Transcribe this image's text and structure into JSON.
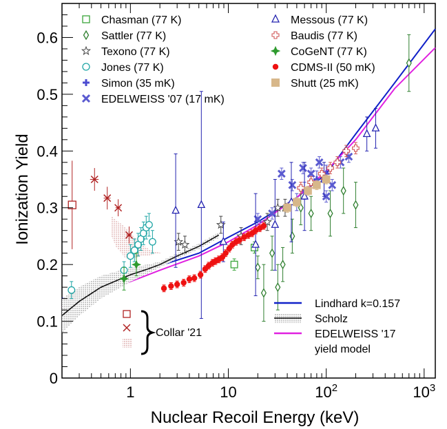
{
  "chart_data": {
    "type": "scatter",
    "xlabel": "Nuclear Recoil Energy (keV)",
    "ylabel": "Ionization Yield",
    "xscale": "log",
    "xlim": [
      0.2,
      1300
    ],
    "ylim": [
      0,
      0.66
    ],
    "x_ticks": [
      {
        "value": 1,
        "label": "1"
      },
      {
        "value": 10,
        "label": "10"
      },
      {
        "value": 100,
        "label": "10",
        "sup": "2"
      },
      {
        "value": 1000,
        "label": "10",
        "sup": "3"
      }
    ],
    "y_ticks": [
      {
        "value": 0,
        "label": "0"
      },
      {
        "value": 0.1,
        "label": "0.1"
      },
      {
        "value": 0.2,
        "label": "0.2"
      },
      {
        "value": 0.3,
        "label": "0.3"
      },
      {
        "value": 0.4,
        "label": "0.4"
      },
      {
        "value": 0.5,
        "label": "0.5"
      },
      {
        "value": 0.6,
        "label": "0.6"
      }
    ],
    "grid": false,
    "legend_placement": "top",
    "series": [
      {
        "name": "Chasman (77 K)",
        "marker": "open-square",
        "color": "#3aa53a",
        "points": [
          [
            11.5,
            0.2,
            0.01
          ],
          [
            18.5,
            0.23,
            0.01
          ]
        ]
      },
      {
        "name": "Sattler (77 K)",
        "marker": "open-diamond",
        "color": "#2f7f2f",
        "points": [
          [
            20,
            0.195,
            0.02
          ],
          [
            23,
            0.15,
            0.05
          ],
          [
            28,
            0.22,
            0.03
          ],
          [
            32,
            0.16,
            0.04
          ],
          [
            36,
            0.2,
            0.03
          ],
          [
            45,
            0.25,
            0.03
          ],
          [
            55,
            0.3,
            0.03
          ],
          [
            70,
            0.29,
            0.03
          ],
          [
            110,
            0.29,
            0.04
          ],
          [
            150,
            0.33,
            0.04
          ],
          [
            200,
            0.305,
            0.04
          ],
          [
            700,
            0.555,
            0.05
          ]
        ]
      },
      {
        "name": "Texono (77 K)",
        "marker": "star",
        "color": "#444444",
        "points": [
          [
            3.1,
            0.24,
            0.015
          ],
          [
            3.6,
            0.235,
            0.015
          ],
          [
            8.4,
            0.27,
            0.015
          ],
          [
            13.5,
            0.25,
            0.015
          ],
          [
            25,
            0.275,
            0.015
          ],
          [
            32,
            0.3,
            0.015
          ],
          [
            38,
            0.3,
            0.015
          ]
        ]
      },
      {
        "name": "Jones (77 K)",
        "marker": "open-circle",
        "color": "#1fa5a5",
        "points": [
          [
            0.25,
            0.155,
            0.015
          ],
          [
            0.86,
            0.19,
            0.015
          ],
          [
            1.0,
            0.215,
            0.02
          ],
          [
            1.1,
            0.225,
            0.02
          ],
          [
            1.2,
            0.235,
            0.02
          ],
          [
            1.28,
            0.245,
            0.02
          ],
          [
            1.36,
            0.255,
            0.02
          ],
          [
            1.45,
            0.265,
            0.02
          ],
          [
            1.55,
            0.27,
            0.02
          ],
          [
            1.68,
            0.24,
            0.02
          ]
        ]
      },
      {
        "name": "Simon (35 mK)",
        "marker": "plus",
        "color": "#4b4bd0",
        "points": [
          [
            50,
            0.31,
            0.015
          ],
          [
            60,
            0.33,
            0.015
          ],
          [
            80,
            0.35,
            0.015
          ],
          [
            100,
            0.36,
            0.015
          ]
        ]
      },
      {
        "name": "EDELWEISS '07 (17 mK)",
        "marker": "x",
        "color": "#5a5ad0",
        "points": [
          [
            20,
            0.28,
            0.01
          ],
          [
            28,
            0.29,
            0.01
          ],
          [
            35,
            0.36,
            0.01
          ],
          [
            45,
            0.34,
            0.01
          ],
          [
            58,
            0.37,
            0.01
          ],
          [
            70,
            0.36,
            0.01
          ],
          [
            85,
            0.38,
            0.01
          ],
          [
            100,
            0.32,
            0.01
          ],
          [
            115,
            0.34,
            0.01
          ],
          [
            140,
            0.38,
            0.01
          ],
          [
            170,
            0.39,
            0.01
          ]
        ]
      },
      {
        "name": "Messous (77 K)",
        "marker": "open-triangle",
        "color": "#2323b0",
        "points": [
          [
            2.9,
            0.295,
            0.1
          ],
          [
            5.3,
            0.305,
            0.2
          ],
          [
            8.9,
            0.24,
            0.035
          ],
          [
            19,
            0.235,
            0.09
          ],
          [
            30,
            0.27,
            0.08
          ],
          [
            44,
            0.31,
            0.07
          ],
          [
            60,
            0.32,
            0.06
          ],
          [
            95,
            0.35,
            0.03
          ],
          [
            260,
            0.43,
            0.03
          ],
          [
            320,
            0.44,
            0.035
          ]
        ]
      },
      {
        "name": "Baudis (77 K)",
        "marker": "open-cross",
        "color": "#d05555",
        "points": [
          [
            55,
            0.335,
            0.01
          ],
          [
            70,
            0.345,
            0.01
          ],
          [
            90,
            0.36,
            0.01
          ],
          [
            110,
            0.37,
            0.01
          ],
          [
            130,
            0.38,
            0.01
          ],
          [
            160,
            0.4,
            0.01
          ],
          [
            200,
            0.405,
            0.01
          ]
        ]
      },
      {
        "name": "CoGeNT (77 K)",
        "marker": "star4",
        "color": "#2e9a2e",
        "points": [
          [
            0.86,
            0.175,
            0.02
          ],
          [
            1.15,
            0.2,
            0.02
          ]
        ]
      },
      {
        "name": "CDMS-II (50 mK)",
        "marker": "filled-circle",
        "color": "#ee1111",
        "points": [
          [
            2.2,
            0.158,
            0.006
          ],
          [
            2.6,
            0.162,
            0.006
          ],
          [
            3.0,
            0.165,
            0.006
          ],
          [
            3.5,
            0.168,
            0.006
          ],
          [
            4.0,
            0.174,
            0.006
          ],
          [
            4.5,
            0.176,
            0.006
          ],
          [
            5.2,
            0.182,
            0.006
          ],
          [
            5.8,
            0.192,
            0.006
          ],
          [
            6.3,
            0.198,
            0.006
          ],
          [
            6.9,
            0.203,
            0.006
          ],
          [
            7.4,
            0.206,
            0.006
          ],
          [
            8.0,
            0.209,
            0.006
          ],
          [
            8.7,
            0.213,
            0.006
          ],
          [
            9.4,
            0.22,
            0.006
          ],
          [
            10.2,
            0.228,
            0.006
          ],
          [
            11.0,
            0.235,
            0.006
          ],
          [
            12.0,
            0.24,
            0.006
          ],
          [
            13.0,
            0.243,
            0.006
          ],
          [
            14.5,
            0.248,
            0.006
          ],
          [
            16.0,
            0.252,
            0.006
          ],
          [
            17.5,
            0.255,
            0.006
          ],
          [
            19.0,
            0.26,
            0.006
          ],
          [
            21.0,
            0.264,
            0.006
          ],
          [
            23.0,
            0.268,
            0.006
          ]
        ]
      },
      {
        "name": "Shutt (25 mK)",
        "marker": "filled-square",
        "color": "#d7b78a",
        "points": [
          [
            40,
            0.3,
            0.008
          ],
          [
            50,
            0.31,
            0.008
          ],
          [
            65,
            0.33,
            0.008
          ],
          [
            80,
            0.34,
            0.008
          ],
          [
            100,
            0.35,
            0.008
          ]
        ]
      }
    ],
    "collar": {
      "label": "Collar '21",
      "color": "#b02222",
      "squares": [
        [
          0.254,
          0.305,
          0.078
        ]
      ],
      "crosses": [
        [
          0.43,
          0.35,
          0.02,
          0.1
        ],
        [
          0.58,
          0.317,
          0.02,
          0.08
        ],
        [
          0.75,
          0.3,
          0.015,
          0.06
        ],
        [
          0.97,
          0.252,
          0.015,
          0.06
        ]
      ],
      "band": [
        [
          0.64,
          0.285
        ],
        [
          0.9,
          0.265
        ],
        [
          1.2,
          0.24
        ],
        [
          1.6,
          0.225
        ],
        [
          2.1,
          0.22
        ],
        [
          0.9,
          0.21
        ],
        [
          0.72,
          0.23
        ],
        [
          0.64,
          0.25
        ]
      ]
    },
    "curves": [
      {
        "name": "Lindhard k=0.157",
        "color": "#1020c8",
        "style": "solid",
        "points": [
          [
            0.2,
            0.14
          ],
          [
            0.5,
            0.158
          ],
          [
            1,
            0.177
          ],
          [
            2,
            0.198
          ],
          [
            5,
            0.22
          ],
          [
            10,
            0.248
          ],
          [
            20,
            0.275
          ],
          [
            50,
            0.318
          ],
          [
            100,
            0.36
          ],
          [
            200,
            0.43
          ],
          [
            500,
            0.52
          ],
          [
            1300,
            0.615
          ]
        ]
      },
      {
        "name": "EDELWEISS '17 yield model",
        "color": "#e020e0",
        "style": "solid",
        "points": [
          [
            0.2,
            0.125
          ],
          [
            0.5,
            0.15
          ],
          [
            1,
            0.17
          ],
          [
            2,
            0.19
          ],
          [
            5,
            0.215
          ],
          [
            10,
            0.24
          ],
          [
            20,
            0.27
          ],
          [
            50,
            0.318
          ],
          [
            100,
            0.365
          ],
          [
            200,
            0.42
          ],
          [
            500,
            0.51
          ],
          [
            1300,
            0.582
          ]
        ]
      },
      {
        "name": "Scholz",
        "color": "#111111",
        "style": "band",
        "points": [
          [
            0.2,
            0.11
          ],
          [
            0.3,
            0.135
          ],
          [
            0.5,
            0.16
          ],
          [
            0.8,
            0.175
          ],
          [
            1.0,
            0.182
          ],
          [
            1.5,
            0.192
          ],
          [
            2.0,
            0.2
          ],
          [
            3.0,
            0.215
          ],
          [
            5.0,
            0.232
          ],
          [
            8.0,
            0.252
          ]
        ]
      }
    ]
  }
}
